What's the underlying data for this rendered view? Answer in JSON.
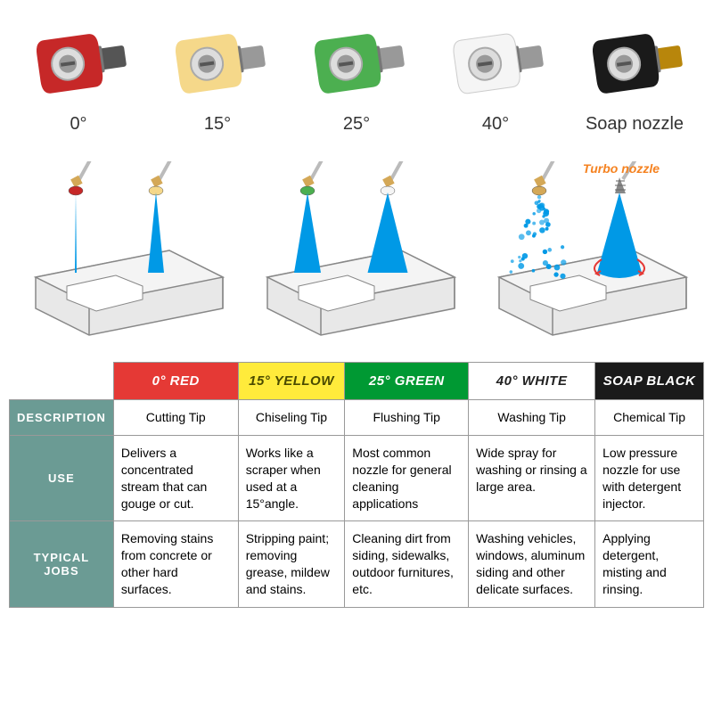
{
  "nozzles": [
    {
      "label": "0°",
      "color": "#c62828",
      "connector_color": "#555"
    },
    {
      "label": "15°",
      "color": "#f5d88a",
      "connector_color": "#999"
    },
    {
      "label": "25°",
      "color": "#4caf50",
      "connector_color": "#999"
    },
    {
      "label": "40°",
      "color": "#f5f5f5",
      "connector_color": "#999"
    },
    {
      "label": "Soap nozzle",
      "color": "#1a1a1a",
      "connector_color": "#b8860b"
    }
  ],
  "diagram": {
    "turbo_label": "Turbo nozzle",
    "panels": [
      {
        "sprays": [
          {
            "nozzle_color": "#c62828",
            "width": 2
          },
          {
            "nozzle_color": "#f5d88a",
            "width": 18
          }
        ]
      },
      {
        "sprays": [
          {
            "nozzle_color": "#4caf50",
            "width": 30
          },
          {
            "nozzle_color": "#f5f5f5",
            "width": 45
          }
        ]
      },
      {
        "sprays": [
          {
            "nozzle_color": "#d4a857",
            "width": 60,
            "mist": true
          },
          {
            "nozzle_color": "#888",
            "width": 50,
            "turbo": true
          }
        ]
      }
    ],
    "spray_color": "#0099e6",
    "block_fill": "#e8e8e8",
    "block_stroke": "#888",
    "wand_color": "#bbb",
    "fitting_color": "#d4a857"
  },
  "table": {
    "header_style": {
      "font_style": "italic",
      "font_weight": "bold"
    },
    "columns": [
      {
        "label": "0° RED",
        "bg": "#e53935",
        "fg": "#ffffff"
      },
      {
        "label": "15° YELLOW",
        "bg": "#ffeb3b",
        "fg": "#4a4a00"
      },
      {
        "label": "25° GREEN",
        "bg": "#009933",
        "fg": "#ffffff"
      },
      {
        "label": "40° WHITE",
        "bg": "#ffffff",
        "fg": "#222222"
      },
      {
        "label": "SOAP BLACK",
        "bg": "#1a1a1a",
        "fg": "#ffffff"
      }
    ],
    "row_header_bg": "#6b9b94",
    "rows": [
      {
        "header": "DESCRIPTION",
        "cells": [
          "Cutting Tip",
          "Chiseling Tip",
          "Flushing Tip",
          "Washing Tip",
          "Chemical Tip"
        ],
        "class": "desc-row"
      },
      {
        "header": "USE",
        "cells": [
          "Delivers a concentrated stream that can gouge or cut.",
          "Works like a scraper when used at a 15°angle.",
          "Most common nozzle for general cleaning applications",
          "Wide spray for washing or rinsing a large area.",
          "Low pressure nozzle for use with detergent injector."
        ]
      },
      {
        "header": "TYPICAL JOBS",
        "cells": [
          "Removing stains from concrete or other hard surfaces.",
          "Stripping paint; removing grease, mildew and stains.",
          "Cleaning dirt from siding, sidewalks, outdoor furnitures, etc.",
          "Washing vehicles, windows, aluminum siding and other delicate surfaces.",
          "Applying detergent, misting and rinsing."
        ]
      }
    ]
  }
}
